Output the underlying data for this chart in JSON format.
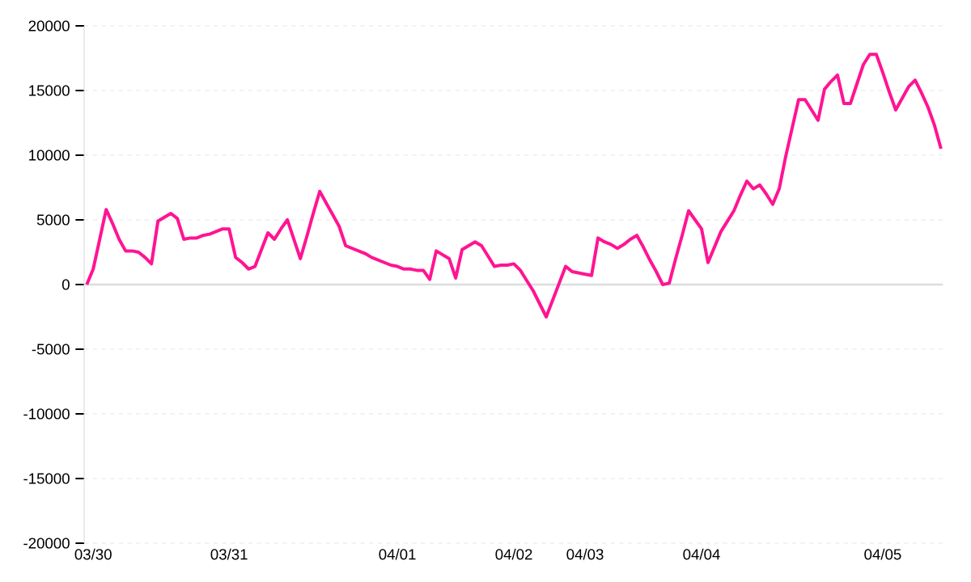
{
  "chart_data": {
    "type": "line",
    "color": "#ff1493",
    "categories": [
      null,
      "03/30",
      null,
      null,
      null,
      null,
      null,
      null,
      null,
      null,
      null,
      null,
      null,
      null,
      null,
      null,
      null,
      null,
      null,
      null,
      null,
      null,
      "03/31",
      null,
      null,
      null,
      null,
      null,
      null,
      null,
      null,
      null,
      null,
      null,
      null,
      null,
      null,
      null,
      null,
      null,
      null,
      null,
      null,
      null,
      null,
      null,
      null,
      null,
      "04/01",
      null,
      null,
      null,
      null,
      null,
      null,
      null,
      null,
      null,
      null,
      null,
      null,
      null,
      null,
      null,
      null,
      null,
      "04/02",
      null,
      null,
      null,
      null,
      null,
      null,
      null,
      null,
      null,
      null,
      "04/03",
      null,
      null,
      null,
      null,
      null,
      null,
      null,
      null,
      null,
      null,
      null,
      null,
      null,
      null,
      null,
      null,
      null,
      "04/04",
      null,
      null,
      null,
      null,
      null,
      null,
      null,
      null,
      null,
      null,
      null,
      null,
      null,
      null,
      null,
      null,
      null,
      null,
      null,
      null,
      null,
      null,
      null,
      null,
      null,
      null,
      null,
      "04/05",
      null,
      null,
      null,
      null,
      null,
      null,
      null,
      null,
      null
    ],
    "values": [
      0,
      1200,
      3500,
      5800,
      4700,
      3500,
      2600,
      2600,
      2500,
      2100,
      1600,
      4900,
      5200,
      5500,
      5100,
      3500,
      3600,
      3600,
      3800,
      3900,
      4100,
      4300,
      4300,
      2100,
      1700,
      1200,
      1400,
      2700,
      4000,
      3500,
      4300,
      5000,
      3500,
      2000,
      3700,
      5500,
      7200,
      6300,
      5400,
      4500,
      3000,
      2800,
      2600,
      2400,
      2100,
      1900,
      1700,
      1500,
      1400,
      1200,
      1200,
      1100,
      1100,
      400,
      2600,
      2300,
      2000,
      500,
      2700,
      3000,
      3300,
      3000,
      2200,
      1400,
      1500,
      1500,
      1600,
      1100,
      300,
      -500,
      -1500,
      -2500,
      -1200,
      100,
      1400,
      1000,
      900,
      800,
      700,
      3600,
      3300,
      3100,
      2800,
      3100,
      3500,
      3800,
      2900,
      1900,
      1000,
      0,
      100,
      2000,
      3800,
      5700,
      5000,
      4300,
      1700,
      2900,
      4100,
      4900,
      5700,
      6900,
      8000,
      7400,
      7700,
      7000,
      6200,
      7400,
      9900,
      12100,
      14300,
      14300,
      13500,
      12700,
      15100,
      15700,
      16200,
      14000,
      14000,
      15500,
      17000,
      17800,
      17800,
      16400,
      14900,
      13500,
      14400,
      15300,
      15800,
      14800,
      13700,
      12300,
      10500
    ],
    "ylim": [
      -20000,
      20000
    ],
    "yticks": [
      -20000,
      -15000,
      -10000,
      -5000,
      0,
      5000,
      10000,
      15000,
      20000
    ],
    "grid": "y",
    "marker": "none",
    "line_style": "solid",
    "ref_lines": [
      {
        "axis": "y",
        "value": 0,
        "color": "#dddddd"
      }
    ]
  }
}
